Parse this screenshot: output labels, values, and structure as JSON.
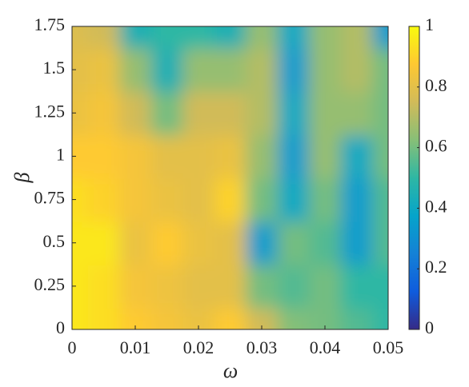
{
  "chart_data": {
    "type": "contour",
    "x_label": "ω",
    "y_label": "β",
    "x": [
      0,
      0.005,
      0.01,
      0.015,
      0.02,
      0.025,
      0.03,
      0.035,
      0.04,
      0.045,
      0.05
    ],
    "y": [
      0,
      0.25,
      0.5,
      0.75,
      1,
      1.25,
      1.5,
      1.75
    ],
    "z": [
      [
        0.95,
        0.93,
        0.88,
        0.85,
        0.82,
        0.88,
        0.75,
        0.62,
        0.6,
        0.55,
        0.5
      ],
      [
        0.95,
        0.93,
        0.85,
        0.83,
        0.8,
        0.8,
        0.6,
        0.55,
        0.6,
        0.5,
        0.5
      ],
      [
        0.95,
        0.95,
        0.82,
        0.88,
        0.82,
        0.8,
        0.35,
        0.6,
        0.55,
        0.35,
        0.55
      ],
      [
        0.93,
        0.9,
        0.85,
        0.82,
        0.8,
        0.9,
        0.6,
        0.4,
        0.6,
        0.35,
        0.55
      ],
      [
        0.88,
        0.88,
        0.85,
        0.8,
        0.8,
        0.82,
        0.65,
        0.35,
        0.65,
        0.4,
        0.6
      ],
      [
        0.82,
        0.85,
        0.75,
        0.6,
        0.75,
        0.75,
        0.7,
        0.4,
        0.65,
        0.65,
        0.6
      ],
      [
        0.8,
        0.82,
        0.65,
        0.45,
        0.65,
        0.65,
        0.7,
        0.35,
        0.65,
        0.7,
        0.6
      ],
      [
        0.78,
        0.75,
        0.45,
        0.5,
        0.5,
        0.45,
        0.65,
        0.4,
        0.65,
        0.7,
        0.35
      ]
    ],
    "xlim": [
      0,
      0.05
    ],
    "xticks": [
      0,
      0.01,
      0.02,
      0.03,
      0.04,
      0.05
    ],
    "ylim": [
      0,
      1.75
    ],
    "yticks": [
      0,
      0.25,
      0.5,
      0.75,
      1,
      1.25,
      1.5,
      1.75
    ],
    "clim": [
      0,
      1
    ],
    "cticks": [
      0,
      0.2,
      0.4,
      0.6,
      0.8,
      1
    ],
    "colormap": [
      "#352a87",
      "#0f5cdd",
      "#1481d6",
      "#06a4ca",
      "#2eb7a4",
      "#87bf77",
      "#d1bb59",
      "#fec832",
      "#f9fb0e"
    ]
  }
}
